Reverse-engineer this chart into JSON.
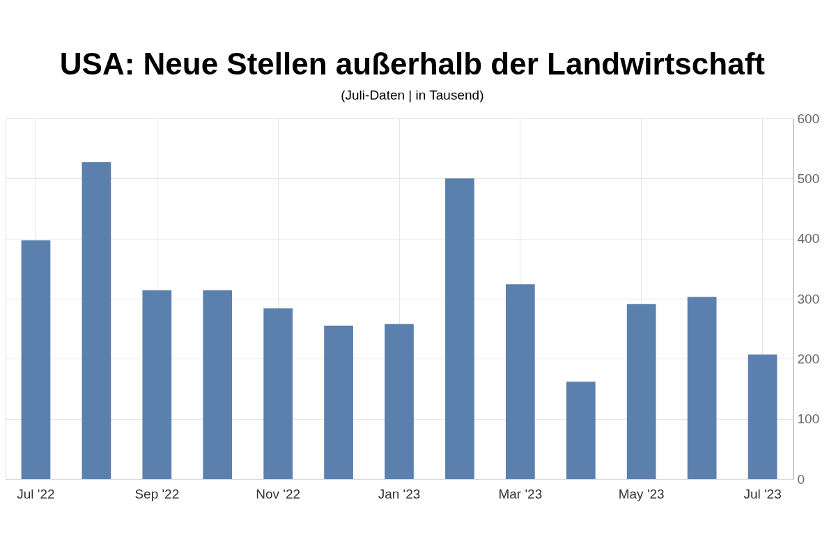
{
  "chart_data": {
    "type": "bar",
    "title": "USA: Neue Stellen außerhalb der Landwirtschaft",
    "subtitle": "(Juli-Daten | in Tausend)",
    "categories": [
      "Jul '22",
      null,
      "Sep '22",
      null,
      "Nov '22",
      null,
      "Jan '23",
      null,
      "Mar '23",
      null,
      "May '23",
      null,
      "Jul '23"
    ],
    "values": [
      397,
      527,
      314,
      314,
      284,
      255,
      258,
      500,
      324,
      162,
      291,
      303,
      207
    ],
    "color": "#5b80ad",
    "ylim": [
      0,
      600
    ],
    "yticks": [
      0,
      100,
      200,
      300,
      400,
      500,
      600
    ],
    "grid": true
  }
}
